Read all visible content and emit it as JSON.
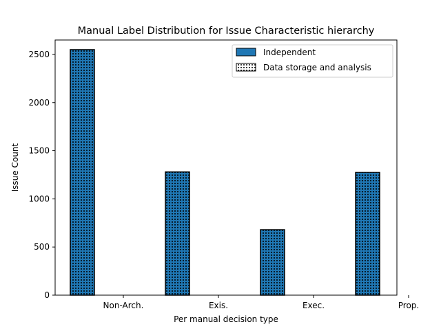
{
  "chart_data": {
    "type": "bar",
    "title": "Manual Label Distribution for Issue Characteristic hierarchy",
    "xlabel": "Per manual decision type",
    "ylabel": "Issue Count",
    "categories": [
      "Non-Arch.",
      "Exis.",
      "Exec.",
      "Prop."
    ],
    "ylim": [
      0,
      2650
    ],
    "yticks": [
      0,
      500,
      1000,
      1500,
      2000,
      2500
    ],
    "legend_position": "top-right",
    "grid": false,
    "series": [
      {
        "name": "Independent",
        "color": "#1f77b4",
        "pattern": "dots",
        "values": [
          2550,
          1280,
          680,
          1275
        ]
      },
      {
        "name": "Data storage and analysis",
        "color": "#ffffff",
        "pattern": "dots",
        "values": [
          0,
          0,
          0,
          0
        ]
      }
    ]
  }
}
